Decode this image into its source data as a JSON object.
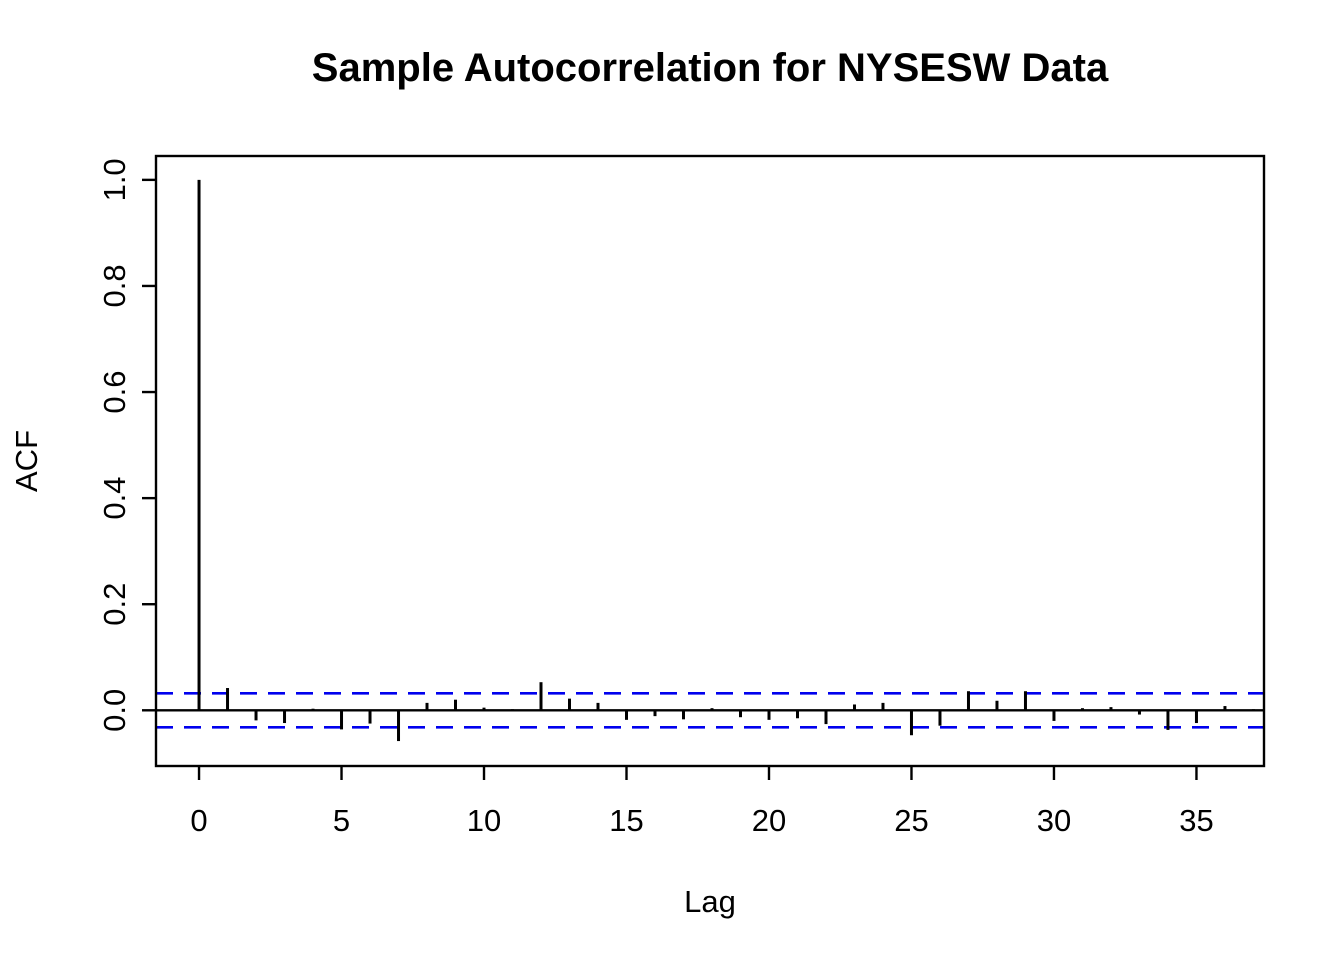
{
  "title": "Sample Autocorrelation for NYSESW Data",
  "chart_data": {
    "type": "bar",
    "subtype": "acf-stem-plot",
    "title": "Sample Autocorrelation for NYSESW Data",
    "xlabel": "Lag",
    "ylabel": "ACF",
    "x": [
      0,
      1,
      2,
      3,
      4,
      5,
      6,
      7,
      8,
      9,
      10,
      11,
      12,
      13,
      14,
      15,
      16,
      17,
      18,
      19,
      20,
      21,
      22,
      23,
      24,
      25,
      26,
      27,
      28,
      29,
      30,
      31,
      32,
      33,
      34,
      35,
      36,
      37
    ],
    "values": [
      1.0,
      0.042,
      -0.019,
      -0.024,
      0.003,
      -0.036,
      -0.025,
      -0.058,
      0.014,
      0.02,
      0.005,
      0.002,
      0.053,
      0.022,
      0.014,
      -0.018,
      -0.011,
      -0.017,
      0.004,
      -0.013,
      -0.018,
      -0.015,
      -0.026,
      0.011,
      0.014,
      -0.047,
      -0.029,
      0.036,
      0.018,
      0.036,
      -0.02,
      0.004,
      0.006,
      -0.008,
      -0.037,
      -0.024,
      0.008,
      0.002
    ],
    "confidence_band": 0.032,
    "confidence_band_style": "dashed",
    "confidence_band_color": "#0000EE",
    "bar_color": "#000000",
    "axis_color": "#000000",
    "background_color": "#FFFFFF",
    "xticks": [
      0,
      5,
      10,
      15,
      20,
      25,
      30,
      35
    ],
    "xtick_labels": [
      "0",
      "5",
      "10",
      "15",
      "20",
      "25",
      "30",
      "35"
    ],
    "yticks": [
      0.0,
      0.2,
      0.4,
      0.6,
      0.8,
      1.0
    ],
    "ytick_labels": [
      "0.0",
      "0.2",
      "0.4",
      "0.6",
      "0.8",
      "1.0"
    ],
    "ytick_label_rotation": -90,
    "xlim": [
      -1.51,
      37.37
    ],
    "ylim": [
      -0.105,
      1.045
    ],
    "grid": false,
    "legend": "none",
    "zero_line": true,
    "box": true
  }
}
